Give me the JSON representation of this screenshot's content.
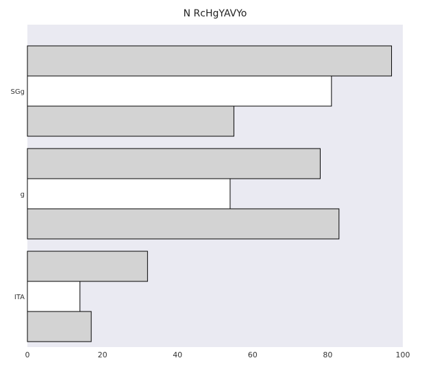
{
  "chart_data": {
    "type": "bar",
    "orientation": "horizontal",
    "title": "N RcHgYAVYo",
    "categories": [
      "SGg",
      "g",
      "ITA"
    ],
    "series": [
      {
        "values": [
          97,
          78,
          32
        ],
        "color": "#d3d3d3"
      },
      {
        "values": [
          81,
          54,
          14
        ],
        "color": "#ffffff"
      },
      {
        "values": [
          55,
          83,
          17
        ],
        "color": "#d3d3d3"
      }
    ],
    "xlim": [
      0,
      100
    ],
    "xticks": [
      "0",
      "20",
      "40",
      "60",
      "80",
      "100"
    ],
    "xlabel": "",
    "ylabel": "",
    "grid": false,
    "legend": false,
    "background_color": "#eaeaf2",
    "edge_color": "#000000"
  }
}
